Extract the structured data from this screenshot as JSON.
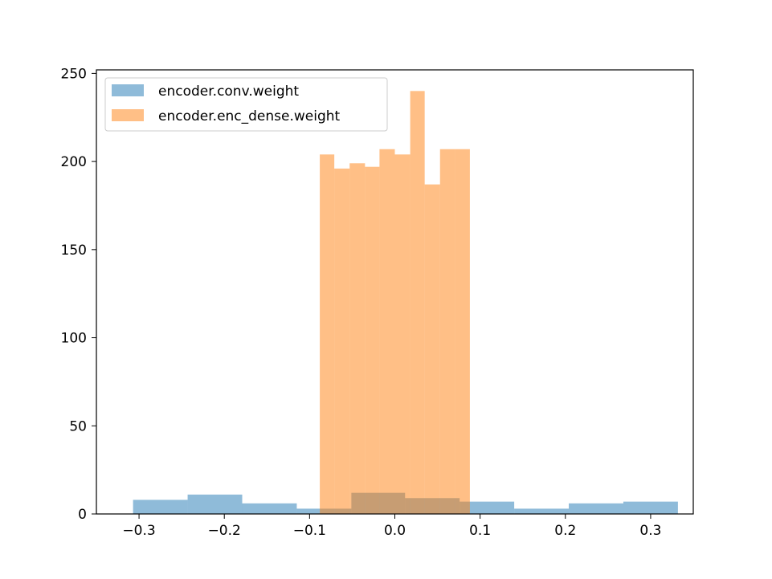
{
  "chart_data": {
    "type": "bar",
    "title": "",
    "xlabel": "",
    "ylabel": "",
    "xlim": [
      -0.35,
      0.35
    ],
    "ylim": [
      0,
      252
    ],
    "xticks": [
      -0.3,
      -0.2,
      -0.1,
      0.0,
      0.1,
      0.2,
      0.3
    ],
    "xtick_labels": [
      "−0.3",
      "−0.2",
      "−0.1",
      "0.0",
      "0.1",
      "0.2",
      "0.3"
    ],
    "yticks": [
      0,
      50,
      100,
      150,
      200,
      250
    ],
    "ytick_labels": [
      "0",
      "50",
      "100",
      "150",
      "200",
      "250"
    ],
    "grid": false,
    "legend_position": "top-left",
    "series": [
      {
        "name": "encoder.conv.weight",
        "color": "#1f77b4",
        "alpha": 0.5,
        "bins": [
          {
            "x0": -0.307,
            "x1": -0.243,
            "count": 8
          },
          {
            "x0": -0.243,
            "x1": -0.179,
            "count": 11
          },
          {
            "x0": -0.179,
            "x1": -0.115,
            "count": 6
          },
          {
            "x0": -0.115,
            "x1": -0.051,
            "count": 3
          },
          {
            "x0": -0.051,
            "x1": 0.012,
            "count": 12
          },
          {
            "x0": 0.012,
            "x1": 0.076,
            "count": 9
          },
          {
            "x0": 0.076,
            "x1": 0.14,
            "count": 7
          },
          {
            "x0": 0.14,
            "x1": 0.204,
            "count": 3
          },
          {
            "x0": 0.204,
            "x1": 0.268,
            "count": 6
          },
          {
            "x0": 0.268,
            "x1": 0.332,
            "count": 7
          }
        ]
      },
      {
        "name": "encoder.enc_dense.weight",
        "color": "#ff7f0e",
        "alpha": 0.5,
        "bins": [
          {
            "x0": -0.088,
            "x1": -0.071,
            "count": 204
          },
          {
            "x0": -0.071,
            "x1": -0.053,
            "count": 196
          },
          {
            "x0": -0.053,
            "x1": -0.035,
            "count": 199
          },
          {
            "x0": -0.035,
            "x1": -0.018,
            "count": 197
          },
          {
            "x0": -0.018,
            "x1": 0.0,
            "count": 207
          },
          {
            "x0": 0.0,
            "x1": 0.018,
            "count": 204
          },
          {
            "x0": 0.018,
            "x1": 0.035,
            "count": 240
          },
          {
            "x0": 0.035,
            "x1": 0.053,
            "count": 187
          },
          {
            "x0": 0.053,
            "x1": 0.071,
            "count": 207
          },
          {
            "x0": 0.071,
            "x1": 0.088,
            "count": 207
          }
        ]
      }
    ]
  }
}
